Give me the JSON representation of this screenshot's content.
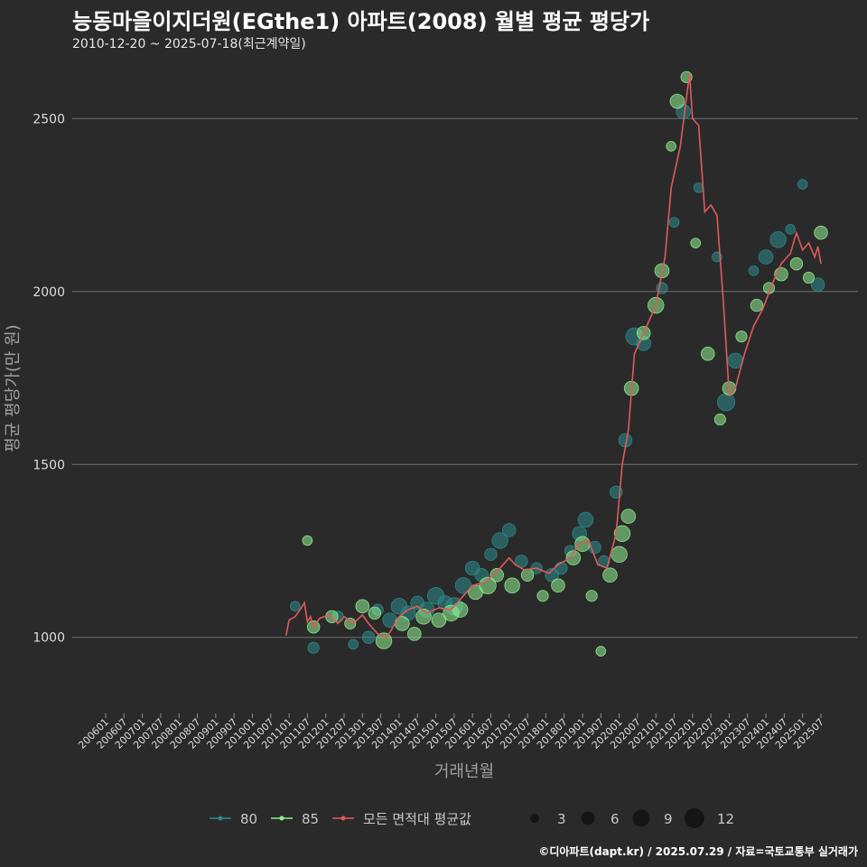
{
  "header": {
    "title": "능동마을이지더원(EGthe1) 아파트(2008) 월별 평균 평당가",
    "subtitle": "2010-12-20 ~ 2025-07-18(최근계약일)"
  },
  "footer": {
    "credit": "©디아파트(dapt.kr) / 2025.07.29 / 자료=국토교통부 실거래가"
  },
  "colors": {
    "background": "#2a2a2b",
    "grid": "#707070",
    "series80": "#2e8b8b",
    "series85": "#90ee90",
    "avg": "#e05a5a"
  },
  "chart_data": {
    "type": "scatter",
    "title": "능동마을이지더원(EGthe1) 아파트(2008) 월별 평균 평당가",
    "xlabel": "거래년월",
    "ylabel": "평균 평당가(만 원)",
    "ylim": [
      780,
      2660
    ],
    "y_ticks": [
      1000,
      1500,
      2000,
      2500
    ],
    "x_tick_labels": [
      "200601",
      "200607",
      "200701",
      "200707",
      "200801",
      "200807",
      "200901",
      "200907",
      "201001",
      "201007",
      "201101",
      "201107",
      "201201",
      "201207",
      "201301",
      "201307",
      "201401",
      "201407",
      "201501",
      "201507",
      "201601",
      "201607",
      "201701",
      "201707",
      "201801",
      "201807",
      "201901",
      "201907",
      "202001",
      "202007",
      "202101",
      "202107",
      "202201",
      "202207",
      "202301",
      "202307",
      "202401",
      "202407",
      "202501",
      "202507"
    ],
    "legend": {
      "series": [
        {
          "name": "80",
          "color": "#2e8b8b"
        },
        {
          "name": "85",
          "color": "#90ee90"
        },
        {
          "name": "모든 면적대 평균값",
          "color": "#e05a5a"
        }
      ],
      "sizes": [
        "3",
        "6",
        "9",
        "12"
      ]
    },
    "series": [
      {
        "name": "80",
        "points": [
          [
            "2011-03",
            1090,
            2
          ],
          [
            "2011-09",
            970,
            3
          ],
          [
            "2012-05",
            1060,
            3
          ],
          [
            "2012-10",
            980,
            2
          ],
          [
            "2013-03",
            1000,
            4
          ],
          [
            "2013-06",
            1080,
            3
          ],
          [
            "2013-10",
            1050,
            6
          ],
          [
            "2014-01",
            1090,
            8
          ],
          [
            "2014-04",
            1070,
            6
          ],
          [
            "2014-07",
            1100,
            5
          ],
          [
            "2014-10",
            1080,
            7
          ],
          [
            "2015-01",
            1120,
            9
          ],
          [
            "2015-04",
            1100,
            6
          ],
          [
            "2015-07",
            1090,
            10
          ],
          [
            "2015-10",
            1150,
            8
          ],
          [
            "2016-01",
            1200,
            6
          ],
          [
            "2016-04",
            1180,
            5
          ],
          [
            "2016-07",
            1240,
            4
          ],
          [
            "2016-10",
            1280,
            8
          ],
          [
            "2017-01",
            1310,
            5
          ],
          [
            "2017-05",
            1220,
            4
          ],
          [
            "2017-10",
            1200,
            3
          ],
          [
            "2018-03",
            1180,
            5
          ],
          [
            "2018-06",
            1200,
            4
          ],
          [
            "2018-09",
            1250,
            3
          ],
          [
            "2018-12",
            1300,
            6
          ],
          [
            "2019-02",
            1340,
            7
          ],
          [
            "2019-05",
            1260,
            4
          ],
          [
            "2019-08",
            1220,
            3
          ],
          [
            "2019-12",
            1420,
            4
          ],
          [
            "2020-03",
            1570,
            5
          ],
          [
            "2020-06",
            1870,
            10
          ],
          [
            "2020-09",
            1850,
            6
          ],
          [
            "2021-03",
            2010,
            3
          ],
          [
            "2021-07",
            2200,
            2
          ],
          [
            "2021-10",
            2520,
            6
          ],
          [
            "2022-03",
            2300,
            2
          ],
          [
            "2022-09",
            2100,
            2
          ],
          [
            "2022-12",
            1680,
            10
          ],
          [
            "2023-03",
            1800,
            7
          ],
          [
            "2023-09",
            2060,
            2
          ],
          [
            "2024-01",
            2100,
            6
          ],
          [
            "2024-05",
            2150,
            8
          ],
          [
            "2024-09",
            2180,
            2
          ],
          [
            "2025-01",
            2310,
            2
          ],
          [
            "2025-06",
            2020,
            5
          ]
        ]
      },
      {
        "name": "85",
        "points": [
          [
            "2011-07",
            1280,
            2
          ],
          [
            "2011-09",
            1030,
            4
          ],
          [
            "2012-03",
            1060,
            4
          ],
          [
            "2012-09",
            1040,
            3
          ],
          [
            "2013-01",
            1090,
            5
          ],
          [
            "2013-05",
            1070,
            4
          ],
          [
            "2013-08",
            990,
            8
          ],
          [
            "2014-02",
            1040,
            6
          ],
          [
            "2014-06",
            1010,
            5
          ],
          [
            "2014-09",
            1060,
            7
          ],
          [
            "2015-02",
            1050,
            6
          ],
          [
            "2015-06",
            1070,
            8
          ],
          [
            "2015-09",
            1080,
            7
          ],
          [
            "2016-02",
            1130,
            6
          ],
          [
            "2016-06",
            1150,
            9
          ],
          [
            "2016-09",
            1180,
            5
          ],
          [
            "2017-02",
            1150,
            7
          ],
          [
            "2017-07",
            1180,
            4
          ],
          [
            "2017-12",
            1120,
            3
          ],
          [
            "2018-05",
            1150,
            5
          ],
          [
            "2018-10",
            1230,
            6
          ],
          [
            "2019-01",
            1270,
            7
          ],
          [
            "2019-04",
            1120,
            3
          ],
          [
            "2019-07",
            960,
            2
          ],
          [
            "2019-10",
            1180,
            6
          ],
          [
            "2020-01",
            1240,
            8
          ],
          [
            "2020-02",
            1300,
            8
          ],
          [
            "2020-04",
            1350,
            6
          ],
          [
            "2020-05",
            1720,
            6
          ],
          [
            "2020-09",
            1880,
            5
          ],
          [
            "2021-01",
            1960,
            8
          ],
          [
            "2021-03",
            2060,
            6
          ],
          [
            "2021-06",
            2420,
            2
          ],
          [
            "2021-08",
            2550,
            6
          ],
          [
            "2021-11",
            2620,
            3
          ],
          [
            "2022-02",
            2140,
            2
          ],
          [
            "2022-06",
            1820,
            5
          ],
          [
            "2022-10",
            1630,
            3
          ],
          [
            "2023-01",
            1720,
            5
          ],
          [
            "2023-05",
            1870,
            3
          ],
          [
            "2023-10",
            1960,
            4
          ],
          [
            "2024-02",
            2010,
            3
          ],
          [
            "2024-06",
            2050,
            5
          ],
          [
            "2024-11",
            2080,
            4
          ],
          [
            "2025-03",
            2040,
            3
          ],
          [
            "2025-07",
            2170,
            5
          ]
        ]
      }
    ],
    "average_line": [
      [
        "2010-12",
        1005
      ],
      [
        "2011-01",
        1050
      ],
      [
        "2011-03",
        1060
      ],
      [
        "2011-05",
        1085
      ],
      [
        "2011-06",
        1100
      ],
      [
        "2011-07",
        1045
      ],
      [
        "2011-08",
        1060
      ],
      [
        "2011-09",
        1030
      ],
      [
        "2011-11",
        1055
      ],
      [
        "2012-02",
        1065
      ],
      [
        "2012-05",
        1040
      ],
      [
        "2012-07",
        1060
      ],
      [
        "2012-10",
        1040
      ],
      [
        "2013-01",
        1065
      ],
      [
        "2013-03",
        1040
      ],
      [
        "2013-06",
        1010
      ],
      [
        "2013-09",
        1000
      ],
      [
        "2014-01",
        1060
      ],
      [
        "2014-04",
        1080
      ],
      [
        "2014-07",
        1090
      ],
      [
        "2014-10",
        1070
      ],
      [
        "2015-02",
        1085
      ],
      [
        "2015-06",
        1080
      ],
      [
        "2015-09",
        1110
      ],
      [
        "2016-01",
        1150
      ],
      [
        "2016-05",
        1160
      ],
      [
        "2016-09",
        1190
      ],
      [
        "2017-01",
        1230
      ],
      [
        "2017-03",
        1210
      ],
      [
        "2017-06",
        1195
      ],
      [
        "2017-10",
        1200
      ],
      [
        "2018-02",
        1185
      ],
      [
        "2018-05",
        1210
      ],
      [
        "2018-09",
        1230
      ],
      [
        "2018-12",
        1270
      ],
      [
        "2019-03",
        1280
      ],
      [
        "2019-06",
        1210
      ],
      [
        "2019-09",
        1200
      ],
      [
        "2019-12",
        1300
      ],
      [
        "2020-02",
        1500
      ],
      [
        "2020-04",
        1600
      ],
      [
        "2020-06",
        1820
      ],
      [
        "2020-09",
        1880
      ],
      [
        "2021-01",
        1960
      ],
      [
        "2021-04",
        2100
      ],
      [
        "2021-06",
        2300
      ],
      [
        "2021-09",
        2420
      ],
      [
        "2021-12",
        2630
      ],
      [
        "2022-01",
        2500
      ],
      [
        "2022-03",
        2480
      ],
      [
        "2022-05",
        2230
      ],
      [
        "2022-07",
        2250
      ],
      [
        "2022-09",
        2220
      ],
      [
        "2022-11",
        1980
      ],
      [
        "2023-01",
        1700
      ],
      [
        "2023-03",
        1720
      ],
      [
        "2023-06",
        1820
      ],
      [
        "2023-09",
        1900
      ],
      [
        "2023-12",
        1950
      ],
      [
        "2024-03",
        2020
      ],
      [
        "2024-06",
        2080
      ],
      [
        "2024-09",
        2110
      ],
      [
        "2024-11",
        2170
      ],
      [
        "2025-01",
        2120
      ],
      [
        "2025-03",
        2140
      ],
      [
        "2025-05",
        2100
      ],
      [
        "2025-06",
        2130
      ],
      [
        "2025-07",
        2080
      ]
    ]
  }
}
